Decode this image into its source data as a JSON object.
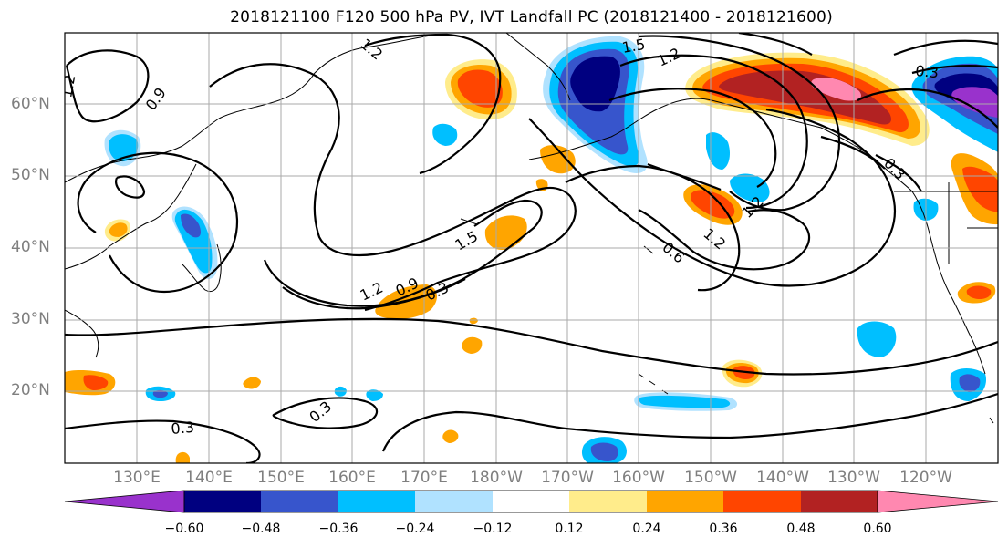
{
  "title": "2018121100 F120 500 hPa PV, IVT Landfall PC (2018121400 - 2018121600)",
  "lat_labels": [
    "60°N",
    "50°N",
    "40°N",
    "30°N",
    "20°N"
  ],
  "lon_labels": [
    "130°E",
    "140°E",
    "150°E",
    "160°E",
    "170°E",
    "180°W",
    "170°W",
    "160°W",
    "150°W",
    "140°W",
    "130°W",
    "120°W"
  ],
  "contour_labels": [
    "1.2",
    "0.9",
    "1.5",
    "1.2",
    "0.3",
    "0.6",
    "1.2",
    "1.5",
    "1.2",
    "1.2",
    "0.9",
    "0.3",
    "0.3",
    "0.3",
    "0.9"
  ],
  "colorbar": {
    "ticks": [
      "−0.60",
      "−0.48",
      "−0.36",
      "−0.24",
      "−0.12",
      "0.12",
      "0.24",
      "0.36",
      "0.48",
      "0.60"
    ],
    "colors": [
      "#9932CC",
      "#000080",
      "#3755CC",
      "#00BFFF",
      "#B0E2FF",
      "#FFFFFF",
      "#FFEC8B",
      "#FFA500",
      "#FF4500",
      "#B22222",
      "#FF88B0"
    ]
  }
}
